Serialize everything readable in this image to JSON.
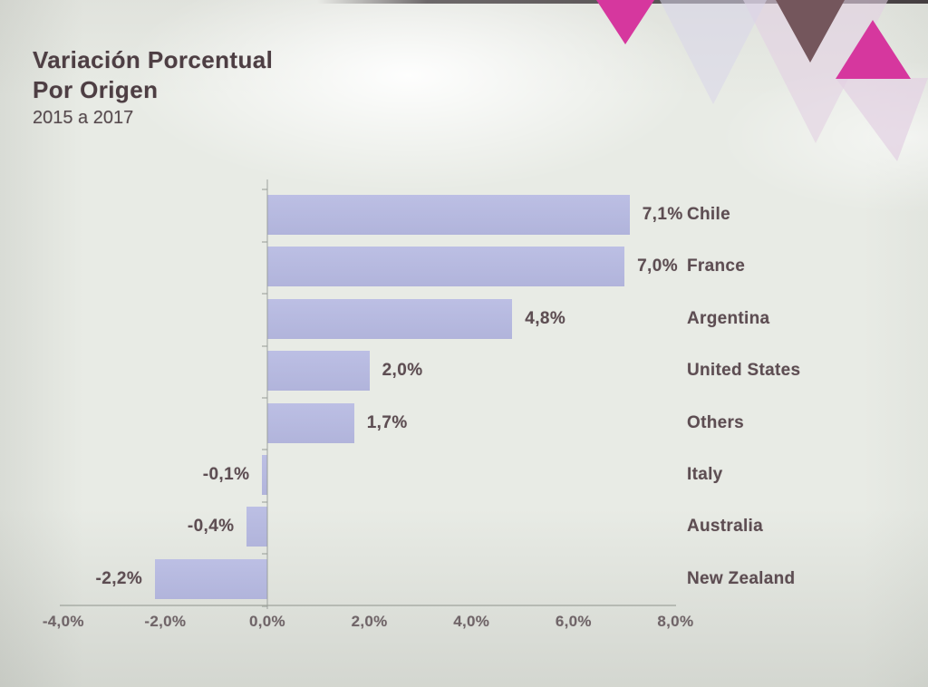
{
  "slide": {
    "title_line1": "Variación Porcentual",
    "title_line2": "Por Origen",
    "subtitle": "2015 a 2017"
  },
  "chart_data": {
    "type": "bar",
    "orientation": "horizontal",
    "title": "Variación Porcentual Por Origen 2015 a 2017",
    "categories": [
      "Chile",
      "France",
      "Argentina",
      "United States",
      "Others",
      "Italy",
      "Australia",
      "New Zealand"
    ],
    "values": [
      7.1,
      7.0,
      4.8,
      2.0,
      1.7,
      -0.1,
      -0.4,
      -2.2
    ],
    "value_labels": [
      "7,1%",
      "7,0%",
      "4,8%",
      "2,0%",
      "1,7%",
      "-0,1%",
      "-0,4%",
      "-2,2%"
    ],
    "x_ticks": [
      -4,
      -2,
      0,
      2,
      4,
      6,
      8
    ],
    "x_tick_labels": [
      "-4,0%",
      "-2,0%",
      "0,0%",
      "2,0%",
      "4,0%",
      "6,0%",
      "8,0%"
    ],
    "xlim": [
      -4,
      8
    ],
    "grid": false,
    "legend": null,
    "bar_color": "#b6b9e0"
  },
  "colors": {
    "bar": "#b6b9e0",
    "magenta": "#d6379e",
    "brown": "#74565c",
    "lavender": "#d9d5ea",
    "pale_pink": "#e3d0e3",
    "text": "#5d4d52",
    "background": "#e8ebe5"
  }
}
